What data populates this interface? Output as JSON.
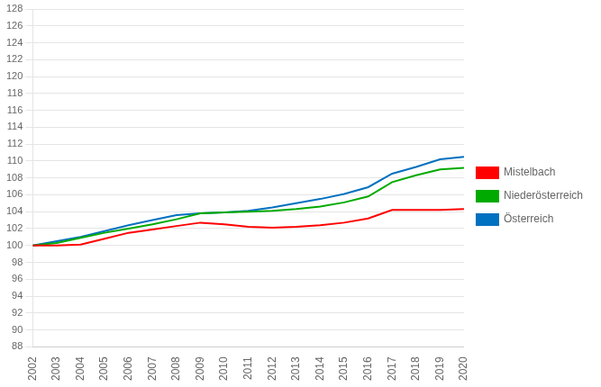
{
  "chart_data": {
    "type": "line",
    "x": [
      2002,
      2003,
      2004,
      2005,
      2006,
      2007,
      2008,
      2009,
      2010,
      2011,
      2012,
      2013,
      2014,
      2015,
      2016,
      2017,
      2018,
      2019,
      2020
    ],
    "series": [
      {
        "name": "Mistelbach",
        "color": "#ff0000",
        "values": [
          100.0,
          100.0,
          100.1,
          100.8,
          101.5,
          101.9,
          102.3,
          102.7,
          102.5,
          102.2,
          102.1,
          102.2,
          102.4,
          102.7,
          103.2,
          104.2,
          104.2,
          104.2,
          104.3
        ]
      },
      {
        "name": "Niederösterreich",
        "color": "#00aa00",
        "values": [
          100.0,
          100.3,
          100.9,
          101.5,
          102.0,
          102.5,
          103.1,
          103.8,
          103.9,
          104.0,
          104.1,
          104.3,
          104.6,
          105.1,
          105.8,
          107.5,
          108.3,
          109.0,
          109.2
        ]
      },
      {
        "name": "Österreich",
        "color": "#0070c0",
        "values": [
          100.0,
          100.5,
          101.0,
          101.7,
          102.4,
          103.0,
          103.6,
          103.8,
          103.9,
          104.1,
          104.5,
          105.0,
          105.5,
          106.1,
          106.9,
          108.5,
          109.3,
          110.2,
          110.5
        ]
      }
    ],
    "xlim": [
      2002,
      2020
    ],
    "xticks": [
      2002,
      2003,
      2004,
      2005,
      2006,
      2007,
      2008,
      2009,
      2010,
      2011,
      2012,
      2013,
      2014,
      2015,
      2016,
      2017,
      2018,
      2019,
      2020
    ],
    "ylim": [
      88,
      128
    ],
    "yticks": [
      88,
      90,
      92,
      94,
      96,
      98,
      100,
      102,
      104,
      106,
      108,
      110,
      112,
      114,
      116,
      118,
      120,
      122,
      124,
      126,
      128
    ],
    "grid": "y",
    "legend": "right"
  }
}
